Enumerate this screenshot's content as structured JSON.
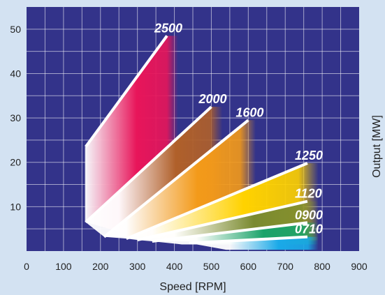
{
  "chart_data": {
    "type": "area",
    "title": "",
    "xlabel": "Speed [RPM]",
    "ylabel": "Output [MW]",
    "xlim": [
      0,
      900
    ],
    "ylim": [
      0,
      55
    ],
    "x_ticks": [
      0,
      100,
      200,
      300,
      400,
      500,
      600,
      700,
      800,
      900
    ],
    "y_ticks": [
      10,
      20,
      30,
      40,
      50
    ],
    "grid": true,
    "background_color": "#33338a",
    "series": [
      {
        "name": "2500",
        "color": "#e8155a",
        "x_min": 160,
        "x_max": 410,
        "upper": [
          [
            160,
            23.5
          ],
          [
            380,
            48.5
          ]
        ],
        "lower": [
          [
            160,
            6.5
          ],
          [
            290,
            3.5
          ]
        ]
      },
      {
        "name": "2000",
        "color": "#b0602a",
        "x_min": 250,
        "x_max": 530,
        "upper": [
          [
            160,
            6.5
          ],
          [
            500,
            32.5
          ]
        ],
        "lower": [
          [
            210,
            3.2
          ],
          [
            330,
            3.2
          ]
        ]
      },
      {
        "name": "1600",
        "color": "#f39a1a",
        "x_min": 270,
        "x_max": 620,
        "upper": [
          [
            210,
            3.2
          ],
          [
            600,
            29.5
          ]
        ],
        "lower": [
          [
            270,
            2.8
          ],
          [
            380,
            2.8
          ]
        ]
      },
      {
        "name": "1250",
        "color": "#ffd200",
        "x_min": 340,
        "x_max": 790,
        "upper": [
          [
            270,
            2.8
          ],
          [
            760,
            19.8
          ]
        ],
        "lower": [
          [
            300,
            2.5
          ],
          [
            420,
            2.5
          ]
        ]
      },
      {
        "name": "1120",
        "color": "#7a8a30",
        "x_min": 400,
        "x_max": 790,
        "upper": [
          [
            300,
            2.5
          ],
          [
            760,
            11.2
          ]
        ],
        "lower": [
          [
            340,
            2.2
          ],
          [
            480,
            2.2
          ]
        ]
      },
      {
        "name": "0900",
        "color": "#1aa36a",
        "x_min": 460,
        "x_max": 790,
        "upper": [
          [
            340,
            2.2
          ],
          [
            760,
            6.4
          ]
        ],
        "lower": [
          [
            420,
            1.5
          ],
          [
            560,
            1.5
          ]
        ]
      },
      {
        "name": "0710",
        "color": "#1aa9e8",
        "x_min": 550,
        "x_max": 790,
        "upper": [
          [
            440,
            1.8
          ],
          [
            760,
            3.2
          ]
        ],
        "lower": [
          [
            540,
            0.3
          ],
          [
            600,
            0.3
          ]
        ]
      }
    ]
  }
}
